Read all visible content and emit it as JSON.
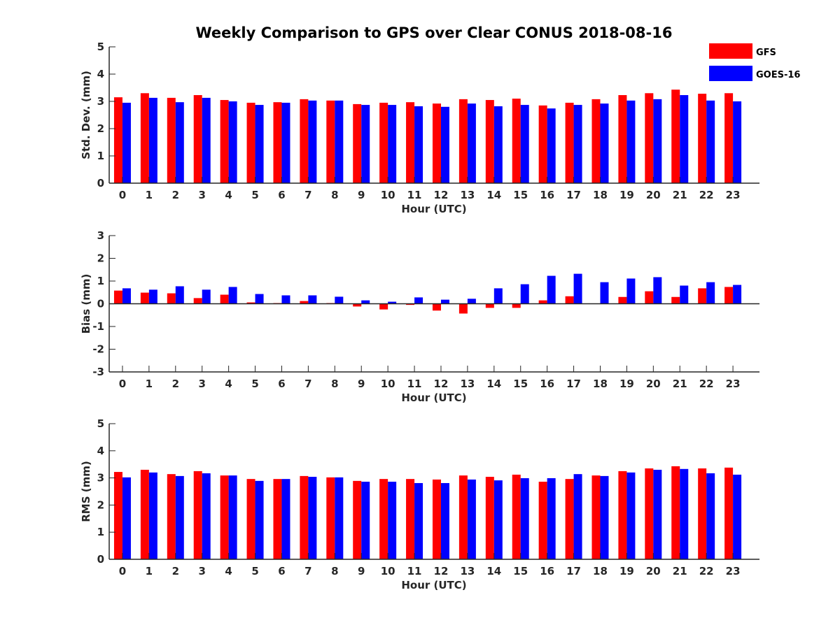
{
  "chart_data": {
    "type": "bar",
    "title": "Weekly Comparison to GPS over Clear CONUS 2018-08-16",
    "legend": {
      "placement": "top-right",
      "entries": [
        "GFS",
        "GOES-16"
      ]
    },
    "colors": {
      "GFS": "#ff0000",
      "GOES-16": "#0000ff"
    },
    "categories": [
      "0",
      "1",
      "2",
      "3",
      "4",
      "5",
      "6",
      "7",
      "8",
      "9",
      "10",
      "11",
      "12",
      "13",
      "14",
      "15",
      "16",
      "17",
      "18",
      "19",
      "20",
      "21",
      "22",
      "23"
    ],
    "panels": [
      {
        "ylabel": "Std. Dev. (mm)",
        "xlabel": "Hour (UTC)",
        "ylim": [
          0,
          5
        ],
        "yticks": [
          "0",
          "1",
          "2",
          "3",
          "4",
          "5"
        ],
        "series": [
          {
            "name": "GFS",
            "values": [
              3.15,
              3.3,
              3.13,
              3.23,
              3.05,
              2.95,
              2.97,
              3.08,
              3.03,
              2.9,
              2.95,
              2.97,
              2.92,
              3.08,
              3.05,
              3.1,
              2.85,
              2.95,
              3.08,
              3.23,
              3.3,
              3.43,
              3.28,
              3.3
            ]
          },
          {
            "name": "GOES-16",
            "values": [
              2.95,
              3.13,
              2.97,
              3.13,
              3.0,
              2.87,
              2.95,
              3.03,
              3.03,
              2.87,
              2.87,
              2.82,
              2.8,
              2.92,
              2.82,
              2.87,
              2.74,
              2.87,
              2.92,
              3.03,
              3.08,
              3.23,
              3.03,
              3.0
            ]
          }
        ]
      },
      {
        "ylabel": "Bias (mm)",
        "xlabel": "Hour (UTC)",
        "ylim": [
          -3,
          3
        ],
        "yticks": [
          "-3",
          "-2",
          "-1",
          "0",
          "1",
          "2",
          "3"
        ],
        "series": [
          {
            "name": "GFS",
            "values": [
              0.58,
              0.49,
              0.46,
              0.25,
              0.4,
              0.06,
              0.03,
              0.12,
              0.03,
              -0.12,
              -0.25,
              -0.05,
              -0.3,
              -0.43,
              -0.18,
              -0.18,
              0.15,
              0.33,
              0.0,
              0.3,
              0.55,
              0.3,
              0.68,
              0.74
            ]
          },
          {
            "name": "GOES-16",
            "values": [
              0.68,
              0.62,
              0.77,
              0.62,
              0.74,
              0.43,
              0.37,
              0.37,
              0.31,
              0.15,
              0.09,
              0.28,
              0.18,
              0.22,
              0.68,
              0.86,
              1.23,
              1.32,
              0.95,
              1.11,
              1.17,
              0.8,
              0.95,
              0.83
            ]
          }
        ]
      },
      {
        "ylabel": "RMS (mm)",
        "xlabel": "Hour (UTC)",
        "ylim": [
          0,
          5
        ],
        "yticks": [
          "0",
          "1",
          "2",
          "3",
          "4",
          "5"
        ],
        "series": [
          {
            "name": "GFS",
            "values": [
              3.22,
              3.3,
              3.14,
              3.25,
              3.09,
              2.96,
              2.96,
              3.07,
              3.02,
              2.89,
              2.96,
              2.96,
              2.94,
              3.09,
              3.04,
              3.12,
              2.86,
              2.96,
              3.09,
              3.25,
              3.35,
              3.43,
              3.35,
              3.38
            ]
          },
          {
            "name": "GOES-16",
            "values": [
              3.02,
              3.2,
              3.07,
              3.17,
              3.09,
              2.89,
              2.96,
              3.04,
              3.02,
              2.86,
              2.86,
              2.81,
              2.81,
              2.94,
              2.91,
              2.99,
              2.99,
              3.14,
              3.07,
              3.2,
              3.3,
              3.33,
              3.17,
              3.12
            ]
          }
        ]
      }
    ]
  }
}
